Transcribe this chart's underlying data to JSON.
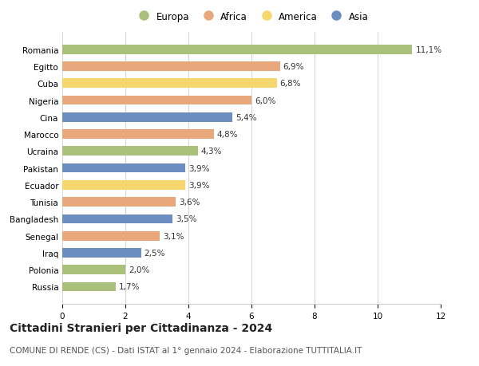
{
  "categories": [
    "Romania",
    "Egitto",
    "Cuba",
    "Nigeria",
    "Cina",
    "Marocco",
    "Ucraina",
    "Pakistan",
    "Ecuador",
    "Tunisia",
    "Bangladesh",
    "Senegal",
    "Iraq",
    "Polonia",
    "Russia"
  ],
  "values": [
    11.1,
    6.9,
    6.8,
    6.0,
    5.4,
    4.8,
    4.3,
    3.9,
    3.9,
    3.6,
    3.5,
    3.1,
    2.5,
    2.0,
    1.7
  ],
  "labels": [
    "11,1%",
    "6,9%",
    "6,8%",
    "6,0%",
    "5,4%",
    "4,8%",
    "4,3%",
    "3,9%",
    "3,9%",
    "3,6%",
    "3,5%",
    "3,1%",
    "2,5%",
    "2,0%",
    "1,7%"
  ],
  "continent": [
    "Europa",
    "Africa",
    "America",
    "Africa",
    "Asia",
    "Africa",
    "Europa",
    "Asia",
    "America",
    "Africa",
    "Asia",
    "Africa",
    "Asia",
    "Europa",
    "Europa"
  ],
  "colors": {
    "Europa": "#a8c07a",
    "Africa": "#e8a87c",
    "America": "#f5d76e",
    "Asia": "#6b8dbf"
  },
  "legend_order": [
    "Europa",
    "Africa",
    "America",
    "Asia"
  ],
  "title": "Cittadini Stranieri per Cittadinanza - 2024",
  "subtitle": "COMUNE DI RENDE (CS) - Dati ISTAT al 1° gennaio 2024 - Elaborazione TUTTITALIA.IT",
  "xlim": [
    0,
    12
  ],
  "xticks": [
    0,
    2,
    4,
    6,
    8,
    10,
    12
  ],
  "background_color": "#ffffff",
  "bar_height": 0.55,
  "title_fontsize": 10,
  "subtitle_fontsize": 7.5,
  "label_fontsize": 7.5,
  "tick_fontsize": 7.5,
  "legend_fontsize": 8.5
}
